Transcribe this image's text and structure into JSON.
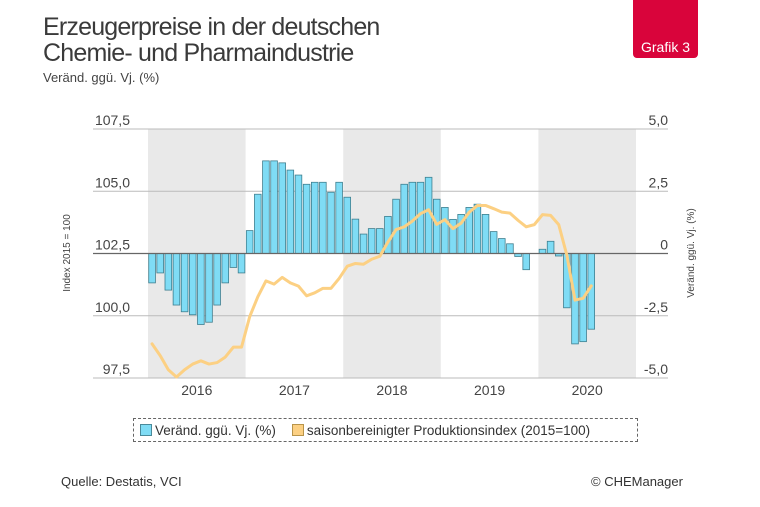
{
  "header": {
    "title_line1": "Erzeugerpreise in der deutschen",
    "title_line2": "Chemie- und Pharmaindustrie",
    "subtitle": "Veränd. ggü. Vj. (%)",
    "badge": "Grafik 3"
  },
  "colors": {
    "bar_fill": "#7fdcf5",
    "bar_stroke": "#3f7f8f",
    "line": "#fcd083",
    "band": "#e9e9e9",
    "grid": "#bbbbbb",
    "zero_line": "#666666",
    "badge": "#d9043b"
  },
  "chart_data": {
    "type": "bar+line",
    "title": "Erzeugerpreise in der deutschen Chemie- und Pharmaindustrie",
    "subtitle": "Veränd. ggü. Vj. (%)",
    "ylabel_left": "Index 2015 = 100",
    "ylabel_right": "Veränd. ggü. Vj. (%)",
    "ylim_left": [
      97.5,
      107.5
    ],
    "ylim_right": [
      -5.0,
      5.0
    ],
    "yticks_left": [
      "97,5",
      "100,0",
      "102,5",
      "105,0",
      "107,5"
    ],
    "yticks_right": [
      "-5,0",
      "-2,5",
      "0",
      "2,5",
      "5,0"
    ],
    "yticks_left_values": [
      97.5,
      100.0,
      102.5,
      105.0,
      107.5
    ],
    "yticks_right_values": [
      -5.0,
      -2.5,
      0,
      2.5,
      5.0
    ],
    "years": [
      "2016",
      "2017",
      "2018",
      "2019",
      "2020"
    ],
    "shaded_years": [
      "2016",
      "2018",
      "2020"
    ],
    "grid": true,
    "legend_position": "bottom",
    "series": [
      {
        "name": "Veränd. ggü. Vj. (%)",
        "type": "bar",
        "axis": "right",
        "values": [
          -1.18,
          -0.78,
          -1.47,
          -2.07,
          -2.34,
          -2.46,
          -2.85,
          -2.76,
          -2.07,
          -1.18,
          -0.56,
          -0.78,
          0.92,
          2.38,
          3.72,
          3.72,
          3.64,
          3.35,
          3.15,
          2.78,
          2.86,
          2.86,
          2.46,
          2.86,
          2.26,
          1.38,
          0.78,
          1.0,
          1.0,
          1.49,
          2.18,
          2.78,
          2.86,
          2.86,
          3.06,
          2.18,
          1.85,
          1.37,
          1.57,
          1.85,
          1.98,
          1.57,
          0.88,
          0.6,
          0.39,
          -0.12,
          -0.65,
          0.0,
          0.17,
          0.49,
          -0.1,
          -2.18,
          -3.63,
          -3.54,
          -3.04
        ]
      },
      {
        "name": "saisonbereinigter Produktionsindex (2015=100)",
        "type": "line",
        "axis": "left",
        "values": [
          98.87,
          98.4,
          97.83,
          97.54,
          97.83,
          98.06,
          98.19,
          98.06,
          98.12,
          98.34,
          98.74,
          98.74,
          99.96,
          100.76,
          101.4,
          101.27,
          101.54,
          101.32,
          101.19,
          100.8,
          100.92,
          101.1,
          101.1,
          101.5,
          101.99,
          102.1,
          102.07,
          102.27,
          102.39,
          102.96,
          103.46,
          103.57,
          103.8,
          104.1,
          104.26,
          103.67,
          103.86,
          103.5,
          103.72,
          104.16,
          104.43,
          104.43,
          104.3,
          104.16,
          104.12,
          103.83,
          103.57,
          103.66,
          104.06,
          104.03,
          103.66,
          102.43,
          100.63,
          100.7,
          101.2
        ]
      }
    ]
  },
  "legend": {
    "items": [
      {
        "label": "Veränd. ggü. Vj. (%)",
        "swatch": "#7fdcf5"
      },
      {
        "label": "saisonbereinigter Produktionsindex (2015=100)",
        "swatch": "#fcd083"
      }
    ]
  },
  "footer": {
    "source": "Quelle: Destatis, VCI",
    "copyright": "© CHEManager"
  }
}
